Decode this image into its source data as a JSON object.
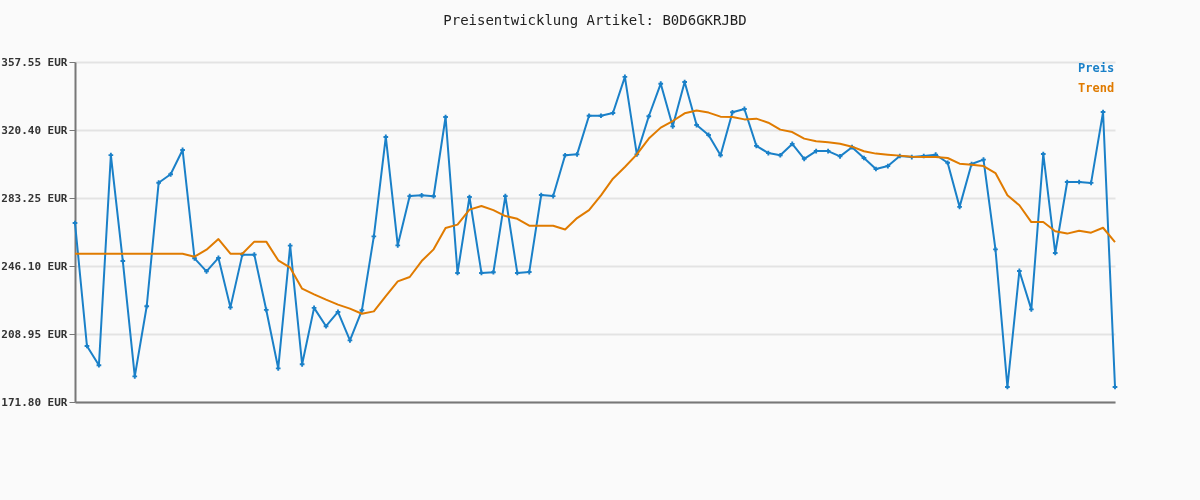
{
  "chart_data": {
    "type": "line",
    "title": "Preisentwicklung Artikel: B0D6GKRJBD",
    "categories": [
      null,
      null,
      null,
      null,
      null,
      null,
      null,
      null,
      null,
      null,
      null,
      null,
      null,
      null,
      null,
      null,
      null,
      null,
      null,
      null,
      null,
      null,
      null,
      null,
      null,
      null,
      null,
      null,
      null,
      null,
      null,
      null,
      null,
      null,
      null,
      null,
      null,
      null,
      null,
      null,
      null,
      null,
      null,
      null,
      null,
      null,
      null,
      null,
      null,
      null,
      null,
      null,
      null,
      null,
      null,
      null,
      null,
      null,
      null,
      null,
      null,
      null,
      null,
      null,
      null,
      null,
      null,
      null,
      null,
      null,
      null,
      null,
      null,
      null,
      null,
      null,
      null,
      null,
      null,
      null,
      null,
      null,
      null,
      null,
      null,
      null,
      null,
      null
    ],
    "series": [
      {
        "name": "Preis",
        "color": "#1a80c8",
        "marker": "cross",
        "values": [
          269.6,
          202.4,
          191.9,
          306.7,
          248.8,
          185.8,
          224.1,
          291.6,
          296.2,
          309.5,
          250.3,
          243.2,
          250.5,
          223.5,
          252.3,
          252.3,
          222.1,
          190.2,
          257.2,
          192.4,
          223.2,
          213.2,
          221.0,
          205.5,
          221.9,
          262.3,
          316.6,
          257.4,
          284.3,
          284.7,
          284.2,
          327.5,
          242.3,
          283.8,
          242.3,
          242.7,
          284.3,
          242.3,
          242.8,
          284.9,
          284.3,
          306.6,
          307.1,
          328.2,
          328.2,
          329.7,
          349.4,
          307.1,
          327.9,
          345.7,
          322.4,
          346.6,
          323.1,
          317.7,
          306.6,
          330.1,
          331.9,
          311.7,
          307.8,
          306.6,
          312.8,
          304.6,
          308.9,
          308.9,
          306.0,
          311.0,
          305.1,
          299.1,
          300.7,
          306.2,
          305.6,
          306.2,
          306.9,
          302.5,
          278.4,
          301.8,
          304.2,
          255.2,
          180.0,
          243.4,
          222.4,
          307.3,
          253.2,
          292.0,
          292.0,
          291.5,
          330.2,
          180.0
        ]
      },
      {
        "name": "Trend",
        "color": "#e07b00",
        "marker": "none",
        "values": [
          252.8,
          252.8,
          252.8,
          252.8,
          252.8,
          252.8,
          252.8,
          252.8,
          252.8,
          252.8,
          251.2,
          255.0,
          260.8,
          252.8,
          252.8,
          259.4,
          259.4,
          249.2,
          245.2,
          233.7,
          230.6,
          227.7,
          225.0,
          222.8,
          220.0,
          221.3,
          229.7,
          237.7,
          240.1,
          248.8,
          255.2,
          266.9,
          268.7,
          276.9,
          278.9,
          276.6,
          273.4,
          271.9,
          268.1,
          268.1,
          268.1,
          266.0,
          272.3,
          276.6,
          284.7,
          293.8,
          300.2,
          307.1,
          315.7,
          321.7,
          325.3,
          329.5,
          331.0,
          329.9,
          327.7,
          327.5,
          326.2,
          326.6,
          324.4,
          320.6,
          319.3,
          315.7,
          314.2,
          313.7,
          312.9,
          311.3,
          308.8,
          307.5,
          306.9,
          306.4,
          305.8,
          305.6,
          305.6,
          305.1,
          302.0,
          301.4,
          300.7,
          296.9,
          284.7,
          279.3,
          270.1,
          270.1,
          265.1,
          263.8,
          265.4,
          264.3,
          267.0,
          259.2
        ]
      }
    ],
    "ylim": [
      171.8,
      357.55
    ],
    "yticks": [
      {
        "value": 171.8,
        "label": "171.80 EUR"
      },
      {
        "value": 208.95,
        "label": "208.95 EUR"
      },
      {
        "value": 246.1,
        "label": "246.10 EUR"
      },
      {
        "value": 283.25,
        "label": "283.25 EUR"
      },
      {
        "value": 320.4,
        "label": "320.40 EUR"
      },
      {
        "value": 357.55,
        "label": "357.55 EUR"
      }
    ],
    "grid": "y",
    "legend": "top right",
    "line_style": "solid"
  }
}
